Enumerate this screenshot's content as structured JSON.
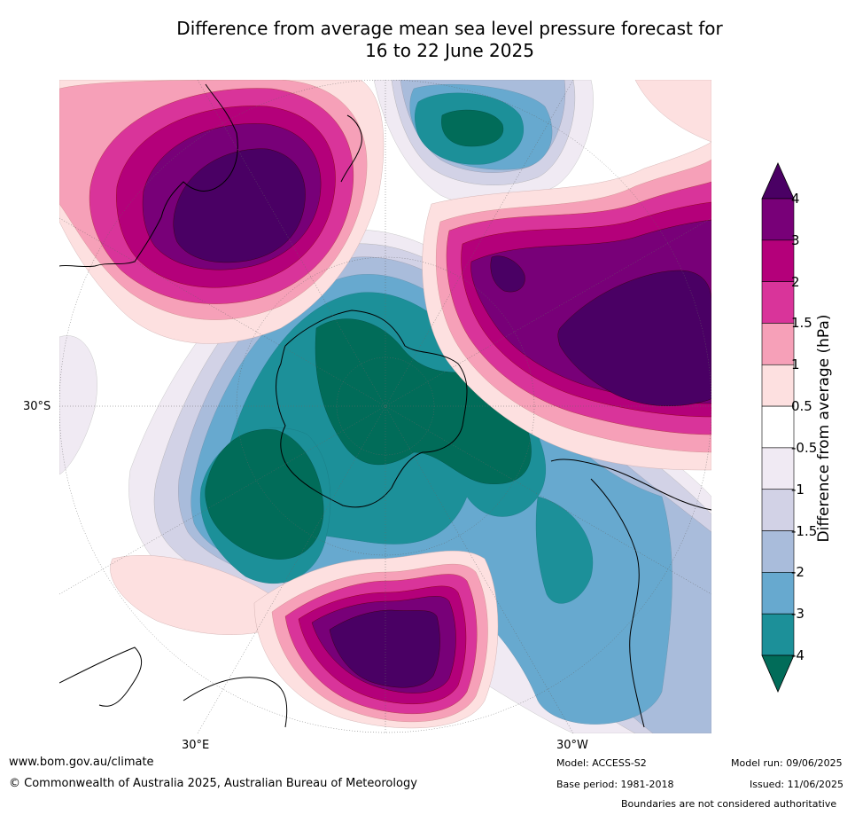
{
  "title_line1": "Difference from average mean sea level pressure forecast for",
  "title_line2": "16 to 22 June 2025",
  "axis": {
    "lat_label": "30°S",
    "lon_label_1": "30°E",
    "lon_label_2": "30°W"
  },
  "colorbar": {
    "title": "Difference from average (hPa)",
    "ticks": [
      "4",
      "3",
      "2",
      "1.5",
      "1",
      "0.5",
      "-0.5",
      "-1",
      "-1.5",
      "-2",
      "-3",
      "-4"
    ],
    "colors": [
      "#4a0064",
      "#780078",
      "#b4007a",
      "#d9349a",
      "#f6a0b8",
      "#fde0e0",
      "#ffffff",
      "#f0eaf3",
      "#d2d2e6",
      "#a9bcdb",
      "#67a9cf",
      "#1c9099",
      "#016c59"
    ]
  },
  "footer": {
    "url": "www.bom.gov.au/climate",
    "copyright": "© Commonwealth of Australia 2025, Australian Bureau of Meteorology",
    "model": "Model: ACCESS-S2",
    "base_period": "Base period: 1981-2018",
    "model_run": "Model run: 09/06/2025",
    "issued": "Issued: 11/06/2025",
    "disclaimer": "Boundaries are not considered authoritative"
  }
}
